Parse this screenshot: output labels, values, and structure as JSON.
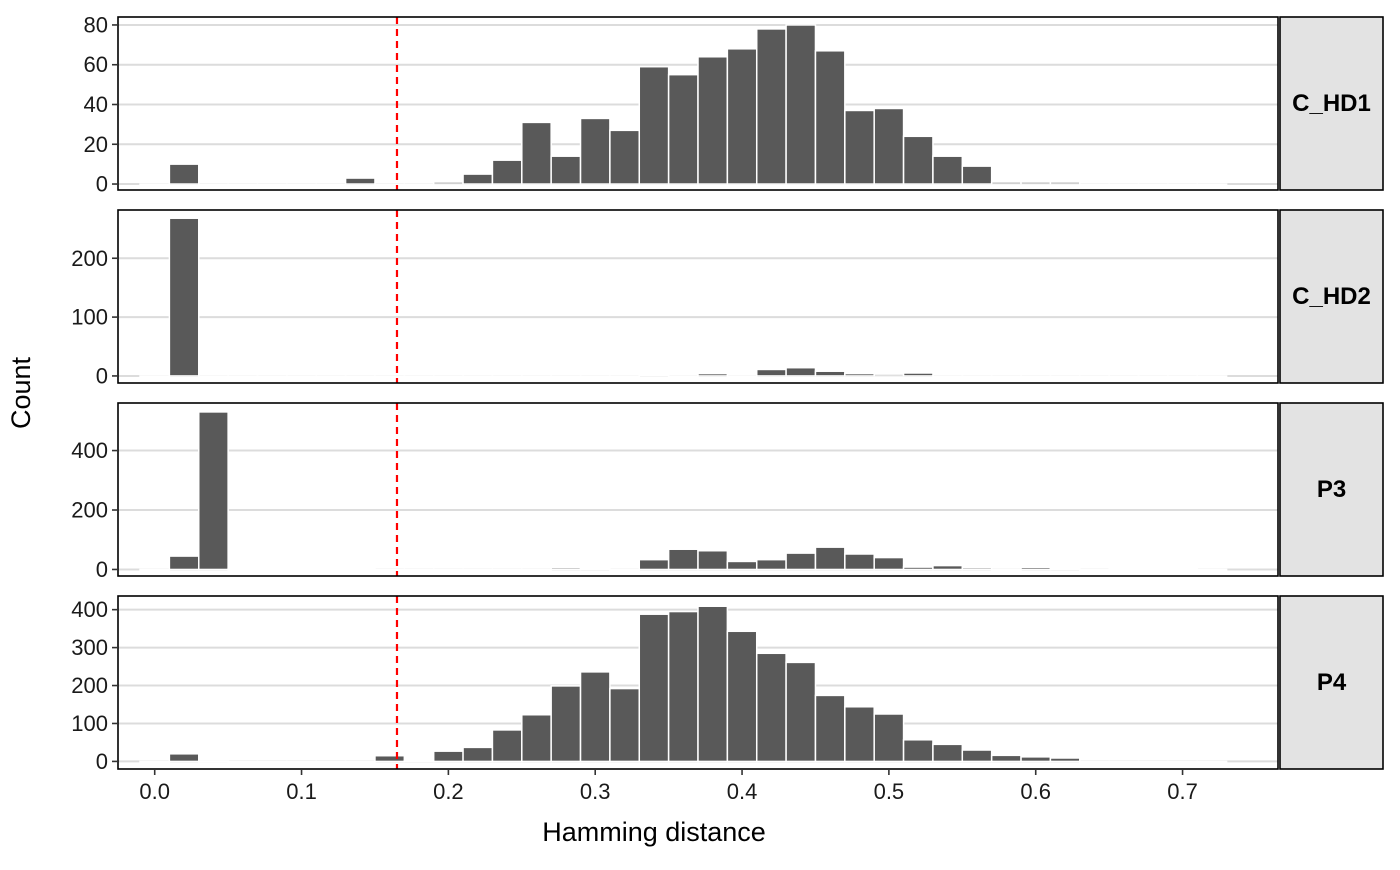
{
  "chart_data": {
    "type": "bar",
    "xlabel": "Hamming distance",
    "ylabel": "Count",
    "xlim": [
      -0.025,
      0.765
    ],
    "x_ticks": [
      0.0,
      0.1,
      0.2,
      0.3,
      0.4,
      0.5,
      0.6,
      0.7
    ],
    "x_tick_labels": [
      "0.0",
      "0.1",
      "0.2",
      "0.3",
      "0.4",
      "0.5",
      "0.6",
      "0.7"
    ],
    "bin_width": 0.02,
    "bin_centers": [
      0.0,
      0.02,
      0.04,
      0.06,
      0.08,
      0.1,
      0.12,
      0.14,
      0.16,
      0.18,
      0.2,
      0.22,
      0.24,
      0.26,
      0.28,
      0.3,
      0.32,
      0.34,
      0.36,
      0.38,
      0.4,
      0.42,
      0.44,
      0.46,
      0.48,
      0.5,
      0.52,
      0.54,
      0.56,
      0.58,
      0.6,
      0.62,
      0.64,
      0.66,
      0.68,
      0.7,
      0.72
    ],
    "reference_line": {
      "x": 0.165,
      "color": "#ff0000",
      "style": "dashed"
    },
    "bar_color": "#595959",
    "grid": true,
    "panels": [
      {
        "label": "C_HD1",
        "ylim": [
          -3,
          84
        ],
        "y_ticks": [
          0,
          20,
          40,
          60,
          80
        ],
        "values": [
          0,
          10,
          0,
          0,
          0,
          0,
          0,
          3,
          0,
          0,
          1,
          5,
          12,
          31,
          14,
          33,
          27,
          59,
          55,
          64,
          68,
          78,
          80,
          67,
          37,
          38,
          24,
          14,
          9,
          1,
          1,
          1,
          0,
          0,
          0,
          0,
          0
        ]
      },
      {
        "label": "C_HD2",
        "ylim": [
          -12,
          282
        ],
        "y_ticks": [
          0,
          100,
          200
        ],
        "values": [
          0,
          268,
          0,
          0,
          0,
          0,
          0,
          0,
          0,
          0,
          0,
          0,
          0,
          0,
          0,
          0,
          0,
          2,
          0,
          4,
          0,
          11,
          14,
          8,
          4,
          3,
          5,
          0,
          0,
          0,
          0,
          0,
          0,
          0,
          0,
          0,
          0
        ]
      },
      {
        "label": "P3",
        "ylim": [
          -22,
          560
        ],
        "y_ticks": [
          0,
          200,
          400
        ],
        "values": [
          0,
          45,
          530,
          1,
          1,
          1,
          1,
          1,
          0,
          0,
          0,
          0,
          0,
          0,
          6,
          2,
          0,
          33,
          68,
          63,
          27,
          33,
          55,
          75,
          52,
          40,
          8,
          13,
          6,
          0,
          7,
          5,
          0,
          1,
          1,
          1,
          0
        ]
      },
      {
        "label": "P4",
        "ylim": [
          -20,
          436
        ],
        "y_ticks": [
          0,
          100,
          200,
          300,
          400
        ],
        "values": [
          0,
          20,
          1,
          0,
          0,
          0,
          0,
          0,
          15,
          2,
          27,
          37,
          83,
          123,
          199,
          236,
          192,
          388,
          395,
          409,
          343,
          285,
          261,
          174,
          144,
          125,
          57,
          45,
          30,
          16,
          12,
          9,
          0,
          0,
          0,
          0,
          0
        ]
      }
    ]
  }
}
